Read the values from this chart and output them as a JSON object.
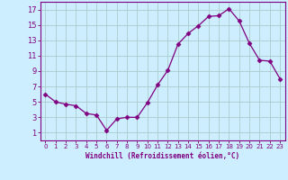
{
  "x": [
    0,
    1,
    2,
    3,
    4,
    5,
    6,
    7,
    8,
    9,
    10,
    11,
    12,
    13,
    14,
    15,
    16,
    17,
    18,
    19,
    20,
    21,
    22,
    23
  ],
  "y": [
    6.0,
    5.0,
    4.7,
    4.5,
    3.5,
    3.3,
    1.3,
    2.8,
    3.0,
    3.0,
    4.9,
    7.2,
    9.1,
    12.5,
    13.9,
    14.9,
    16.1,
    16.2,
    17.1,
    15.5,
    12.6,
    10.4,
    10.3,
    8.0
  ],
  "line_color": "#800080",
  "marker": "D",
  "marker_size": 2.5,
  "background_color": "#cceeff",
  "grid_color": "#aacccc",
  "xlabel": "Windchill (Refroidissement éolien,°C)",
  "xlabel_color": "#800080",
  "tick_color": "#800080",
  "spine_color": "#800080",
  "xlim": [
    -0.5,
    23.5
  ],
  "ylim": [
    0,
    18
  ],
  "yticks": [
    1,
    3,
    5,
    7,
    9,
    11,
    13,
    15,
    17
  ],
  "xticks": [
    0,
    1,
    2,
    3,
    4,
    5,
    6,
    7,
    8,
    9,
    10,
    11,
    12,
    13,
    14,
    15,
    16,
    17,
    18,
    19,
    20,
    21,
    22,
    23
  ],
  "xlabel_fontsize": 5.5,
  "tick_fontsize_x": 5,
  "tick_fontsize_y": 6
}
